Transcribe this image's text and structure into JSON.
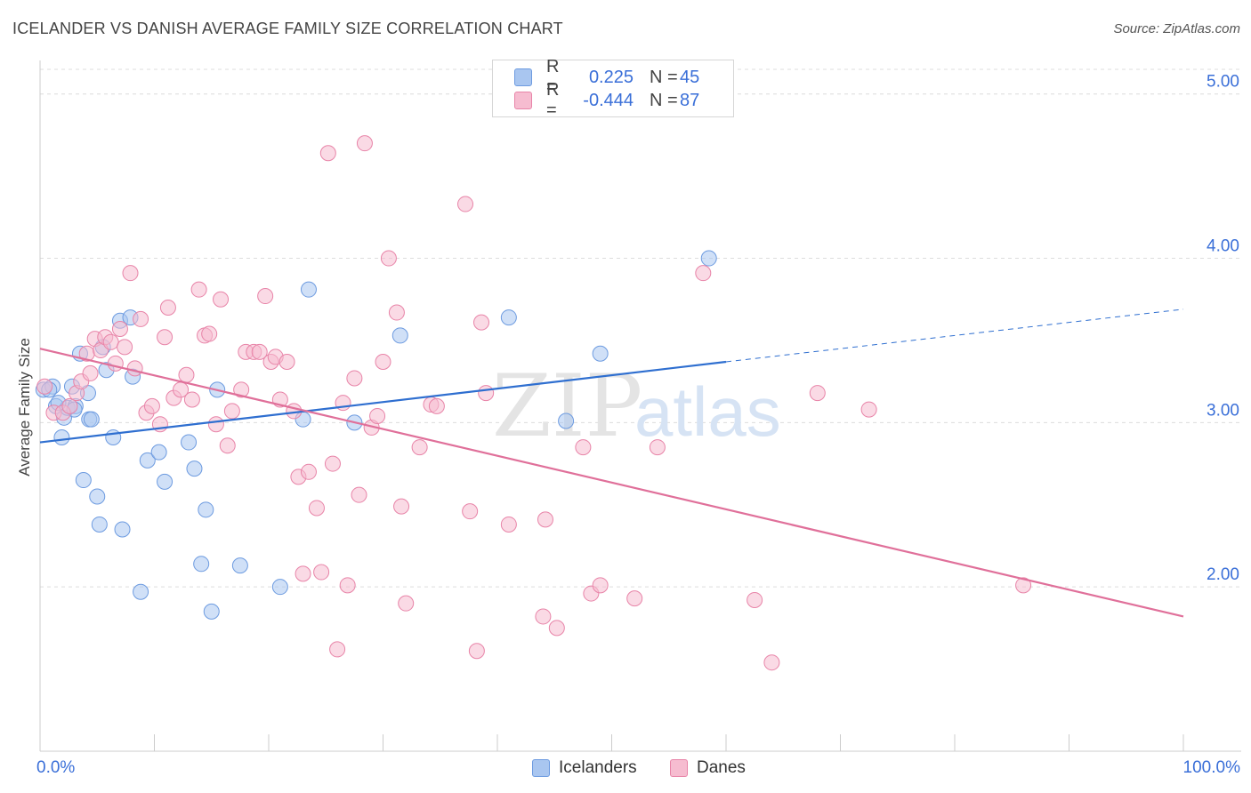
{
  "title": "ICELANDER VS DANISH AVERAGE FAMILY SIZE CORRELATION CHART",
  "source": "Source: ZipAtlas.com",
  "legend": {
    "rows": [
      {
        "r_label": "R =",
        "r_value": "0.225",
        "n_label": "N =",
        "n_value": "45",
        "color": "#a9c6f0",
        "stroke": "#6d9be0"
      },
      {
        "r_label": "R =",
        "r_value": "-0.444",
        "n_label": "N =",
        "n_value": "87",
        "color": "#f6bcd0",
        "stroke": "#e884a8"
      }
    ],
    "bottom": [
      "Icelanders",
      "Danes"
    ]
  },
  "chart_data": {
    "type": "scatter",
    "title": "ICELANDER VS DANISH AVERAGE FAMILY SIZE CORRELATION CHART",
    "xlabel": "",
    "ylabel": "Average Family Size",
    "xlim": [
      0,
      100
    ],
    "ylim": [
      1.0,
      5.15
    ],
    "x_tick_labels": [
      "0.0%",
      "100.0%"
    ],
    "y_ticks": [
      2.0,
      3.0,
      4.0,
      5.0
    ],
    "y_tick_labels": [
      "2.00",
      "3.00",
      "4.00",
      "5.00"
    ],
    "grid": true,
    "legend_position": "top-center",
    "watermark": "ZIPatlas",
    "series": [
      {
        "name": "Icelanders",
        "color": "#6d9be0",
        "fill": "#a9c6f0",
        "line_color": "#2f6fd0",
        "trend": {
          "x0": 0,
          "y0": 2.88,
          "x1": 60,
          "y1": 3.37,
          "dashed_to_x": 100,
          "dashed_to_y": 3.69
        },
        "points": [
          [
            0.3,
            3.2
          ],
          [
            1.1,
            3.22
          ],
          [
            1.4,
            3.1
          ],
          [
            1.9,
            2.91
          ],
          [
            2.1,
            3.03
          ],
          [
            2.4,
            3.09
          ],
          [
            2.8,
            3.22
          ],
          [
            3.1,
            3.1
          ],
          [
            3.5,
            3.42
          ],
          [
            3.8,
            2.65
          ],
          [
            4.2,
            3.18
          ],
          [
            4.3,
            3.02
          ],
          [
            4.5,
            3.02
          ],
          [
            5.0,
            2.55
          ],
          [
            5.2,
            2.38
          ],
          [
            5.5,
            3.46
          ],
          [
            5.8,
            3.32
          ],
          [
            6.4,
            2.91
          ],
          [
            7.0,
            3.62
          ],
          [
            7.2,
            2.35
          ],
          [
            7.9,
            3.64
          ],
          [
            8.1,
            3.28
          ],
          [
            8.8,
            1.97
          ],
          [
            9.4,
            2.77
          ],
          [
            10.4,
            2.82
          ],
          [
            10.9,
            2.64
          ],
          [
            13.0,
            2.88
          ],
          [
            13.5,
            2.72
          ],
          [
            14.1,
            2.14
          ],
          [
            14.5,
            2.47
          ],
          [
            15.0,
            1.85
          ],
          [
            15.5,
            3.2
          ],
          [
            17.5,
            2.13
          ],
          [
            21.0,
            2.0
          ],
          [
            23.0,
            3.02
          ],
          [
            23.5,
            3.81
          ],
          [
            27.5,
            3.0
          ],
          [
            31.5,
            3.53
          ],
          [
            41.0,
            3.64
          ],
          [
            46.0,
            3.01
          ],
          [
            49.0,
            3.42
          ],
          [
            58.5,
            4.0
          ],
          [
            0.8,
            3.2
          ],
          [
            1.6,
            3.12
          ],
          [
            3.0,
            3.08
          ]
        ]
      },
      {
        "name": "Danes",
        "color": "#e884a8",
        "fill": "#f6bcd0",
        "line_color": "#e0709a",
        "trend": {
          "x0": 0,
          "y0": 3.45,
          "x1": 100,
          "y1": 1.82
        },
        "points": [
          [
            0.4,
            3.22
          ],
          [
            1.2,
            3.06
          ],
          [
            2.0,
            3.06
          ],
          [
            2.6,
            3.1
          ],
          [
            3.2,
            3.18
          ],
          [
            3.6,
            3.25
          ],
          [
            4.1,
            3.42
          ],
          [
            4.4,
            3.3
          ],
          [
            4.8,
            3.51
          ],
          [
            5.3,
            3.44
          ],
          [
            5.7,
            3.52
          ],
          [
            6.2,
            3.49
          ],
          [
            6.6,
            3.36
          ],
          [
            7.0,
            3.57
          ],
          [
            7.4,
            3.46
          ],
          [
            7.9,
            3.91
          ],
          [
            8.3,
            3.33
          ],
          [
            8.8,
            3.63
          ],
          [
            9.3,
            3.06
          ],
          [
            9.8,
            3.1
          ],
          [
            10.5,
            2.99
          ],
          [
            10.9,
            3.52
          ],
          [
            11.2,
            3.7
          ],
          [
            11.7,
            3.15
          ],
          [
            12.3,
            3.2
          ],
          [
            12.8,
            3.29
          ],
          [
            13.3,
            3.14
          ],
          [
            13.9,
            3.81
          ],
          [
            14.4,
            3.53
          ],
          [
            14.8,
            3.54
          ],
          [
            15.4,
            2.99
          ],
          [
            15.8,
            3.75
          ],
          [
            16.4,
            2.86
          ],
          [
            16.8,
            3.07
          ],
          [
            17.6,
            3.2
          ],
          [
            18.0,
            3.43
          ],
          [
            18.7,
            3.43
          ],
          [
            19.2,
            3.43
          ],
          [
            19.7,
            3.77
          ],
          [
            20.2,
            3.37
          ],
          [
            20.6,
            3.4
          ],
          [
            21.0,
            3.14
          ],
          [
            21.6,
            3.37
          ],
          [
            22.2,
            3.07
          ],
          [
            22.6,
            2.67
          ],
          [
            23.0,
            2.08
          ],
          [
            23.5,
            2.7
          ],
          [
            24.2,
            2.48
          ],
          [
            24.6,
            2.09
          ],
          [
            25.2,
            4.64
          ],
          [
            25.6,
            2.75
          ],
          [
            26.0,
            1.62
          ],
          [
            26.5,
            3.12
          ],
          [
            26.9,
            2.01
          ],
          [
            27.5,
            3.27
          ],
          [
            27.9,
            2.56
          ],
          [
            28.4,
            4.7
          ],
          [
            29.0,
            2.97
          ],
          [
            29.5,
            3.04
          ],
          [
            30.0,
            3.37
          ],
          [
            30.5,
            4.0
          ],
          [
            31.2,
            3.67
          ],
          [
            31.6,
            2.49
          ],
          [
            32.0,
            1.9
          ],
          [
            33.2,
            2.85
          ],
          [
            34.2,
            3.11
          ],
          [
            34.7,
            3.1
          ],
          [
            37.2,
            4.33
          ],
          [
            37.6,
            2.46
          ],
          [
            38.2,
            1.61
          ],
          [
            38.6,
            3.61
          ],
          [
            39.0,
            3.18
          ],
          [
            41.0,
            2.38
          ],
          [
            44.0,
            1.82
          ],
          [
            44.2,
            2.41
          ],
          [
            45.2,
            1.75
          ],
          [
            47.5,
            2.85
          ],
          [
            48.2,
            1.96
          ],
          [
            49.0,
            2.01
          ],
          [
            52.0,
            1.93
          ],
          [
            54.0,
            2.85
          ],
          [
            58.0,
            3.91
          ],
          [
            62.5,
            1.92
          ],
          [
            64.0,
            1.54
          ],
          [
            68.0,
            3.18
          ],
          [
            72.5,
            3.08
          ],
          [
            86.0,
            2.01
          ]
        ]
      }
    ]
  }
}
